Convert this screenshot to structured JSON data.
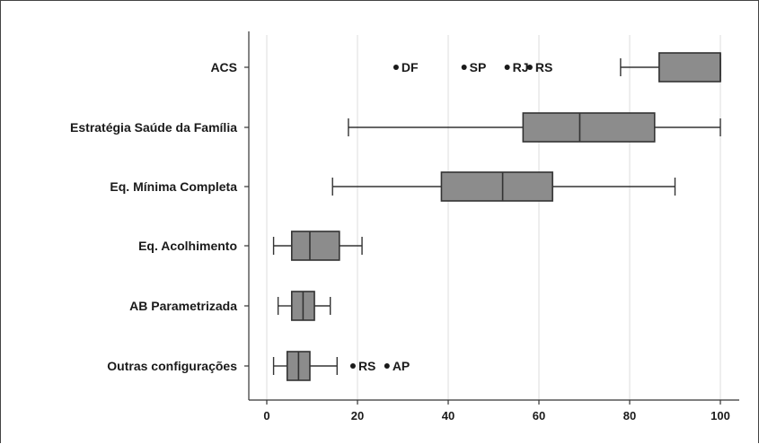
{
  "chart_data": {
    "type": "boxplot",
    "orientation": "horizontal",
    "title": "",
    "xlabel": "",
    "ylabel": "",
    "xlim": [
      0,
      100
    ],
    "xticks": [
      0,
      20,
      40,
      60,
      80,
      100
    ],
    "grid": true,
    "box_color": "#8c8c8c",
    "categories": [
      "ACS",
      "Estratégia Saúde da Família",
      "Eq. Mínima Completa",
      "Eq. Acolhimento",
      "AB Parametrizada",
      "Outras configurações"
    ],
    "boxes": [
      {
        "whisker_low": 78,
        "q1": 86.5,
        "median": 100,
        "q3": 100,
        "whisker_high": 100,
        "outliers": [
          {
            "value": 28.5,
            "label": "DF"
          },
          {
            "value": 43.5,
            "label": "SP"
          },
          {
            "value": 53,
            "label": "RJ"
          },
          {
            "value": 58,
            "label": "RS"
          }
        ]
      },
      {
        "whisker_low": 18,
        "q1": 56.5,
        "median": 69,
        "q3": 85.5,
        "whisker_high": 100,
        "outliers": []
      },
      {
        "whisker_low": 14.5,
        "q1": 38.5,
        "median": 52,
        "q3": 63,
        "whisker_high": 90,
        "outliers": []
      },
      {
        "whisker_low": 1.5,
        "q1": 5.5,
        "median": 9.5,
        "q3": 16,
        "whisker_high": 21,
        "outliers": []
      },
      {
        "whisker_low": 2.5,
        "q1": 5.5,
        "median": 8,
        "q3": 10.5,
        "whisker_high": 14,
        "outliers": []
      },
      {
        "whisker_low": 1.5,
        "q1": 4.5,
        "median": 7,
        "q3": 9.5,
        "whisker_high": 15.5,
        "outliers": [
          {
            "value": 19,
            "label": "RS"
          },
          {
            "value": 26.5,
            "label": "AP"
          }
        ]
      }
    ]
  }
}
